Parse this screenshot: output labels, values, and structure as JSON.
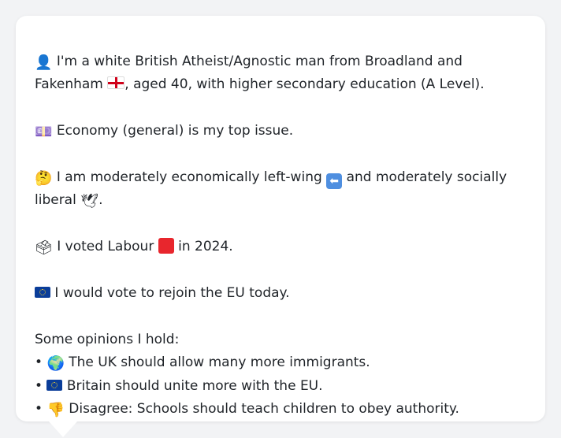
{
  "profile": {
    "intro": {
      "person_icon": "👤",
      "text1": " I'm a white British Atheist/Agnostic man from Broadland and Fakenham ",
      "flag_icon": "england-flag",
      "text2": ", aged 40, with higher secondary education (A Level)."
    },
    "top_issue": {
      "icon": "💷",
      "text": " Economy (general) is my top issue."
    },
    "ideology": {
      "icon": "🤔",
      "text1": " I am moderately economically left-wing ",
      "arrow_icon": "⬅",
      "text2": " and moderately socially liberal ",
      "dove_icon": "🕊",
      "text3": "."
    },
    "vote": {
      "icon": "🗳",
      "text1": " I voted Labour ",
      "party_color": "#e8262d",
      "text2": " in 2024."
    },
    "eu": {
      "text": " I would vote to rejoin the EU today."
    },
    "opinions": {
      "heading": "Some opinions I hold:",
      "items": [
        {
          "bullet": "•",
          "icon": "🌍",
          "text": " The UK should allow many more immigrants."
        },
        {
          "bullet": "•",
          "icon": "eu-flag",
          "text": " Britain should unite more with the EU."
        },
        {
          "bullet": "•",
          "icon": "👎",
          "text": " Disagree: Schools should teach children to obey authority."
        }
      ]
    }
  }
}
